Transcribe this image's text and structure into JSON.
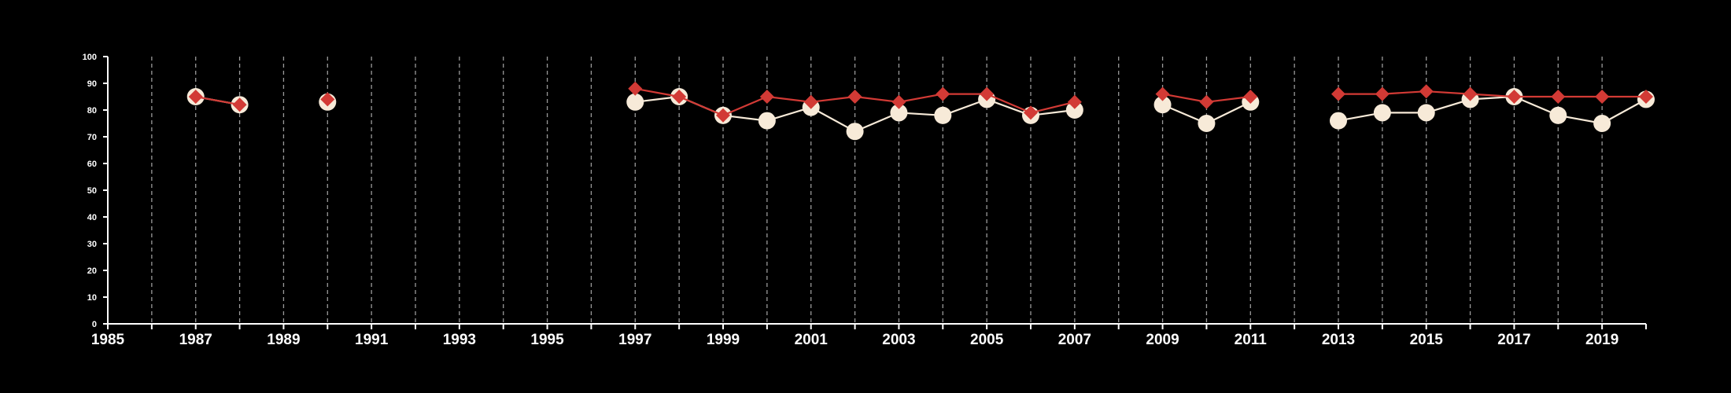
{
  "chart_data": {
    "type": "line",
    "title": "",
    "xlabel": "",
    "ylabel": "",
    "xlim": [
      1985,
      2020
    ],
    "ylim": [
      0,
      100
    ],
    "x_tick_labels": [
      1985,
      1987,
      1989,
      1991,
      1993,
      1995,
      1997,
      1999,
      2001,
      2003,
      2005,
      2007,
      2009,
      2011,
      2013,
      2015,
      2017,
      2019
    ],
    "x_minor_ticks": [
      1986,
      1988,
      1990,
      1992,
      1994,
      1996,
      1998,
      2000,
      2002,
      2004,
      2006,
      2008,
      2010,
      2012,
      2014,
      2016,
      2018,
      2020
    ],
    "y_tick_labels": [
      0,
      10,
      20,
      30,
      40,
      50,
      60,
      70,
      80,
      90,
      100
    ],
    "grid": "vertical dashed",
    "background": "#000000",
    "x": [
      1987,
      1988,
      1990,
      1997,
      1998,
      1999,
      2000,
      2001,
      2002,
      2003,
      2004,
      2005,
      2006,
      2007,
      2009,
      2010,
      2011,
      2013,
      2014,
      2015,
      2016,
      2017,
      2018,
      2019,
      2020
    ],
    "series": [
      {
        "marker": "circle",
        "color": "#f7ead8",
        "values": [
          85,
          82,
          83,
          83,
          85,
          78,
          76,
          81,
          72,
          79,
          78,
          84,
          78,
          80,
          82,
          75,
          83,
          76,
          79,
          79,
          84,
          85,
          78,
          75,
          84
        ]
      },
      {
        "marker": "diamond",
        "color": "#d23a35",
        "values": [
          85,
          82,
          84,
          88,
          85,
          78,
          85,
          83,
          85,
          83,
          86,
          86,
          79,
          83,
          86,
          83,
          85,
          86,
          86,
          87,
          86,
          85,
          85,
          85,
          85
        ]
      }
    ]
  }
}
